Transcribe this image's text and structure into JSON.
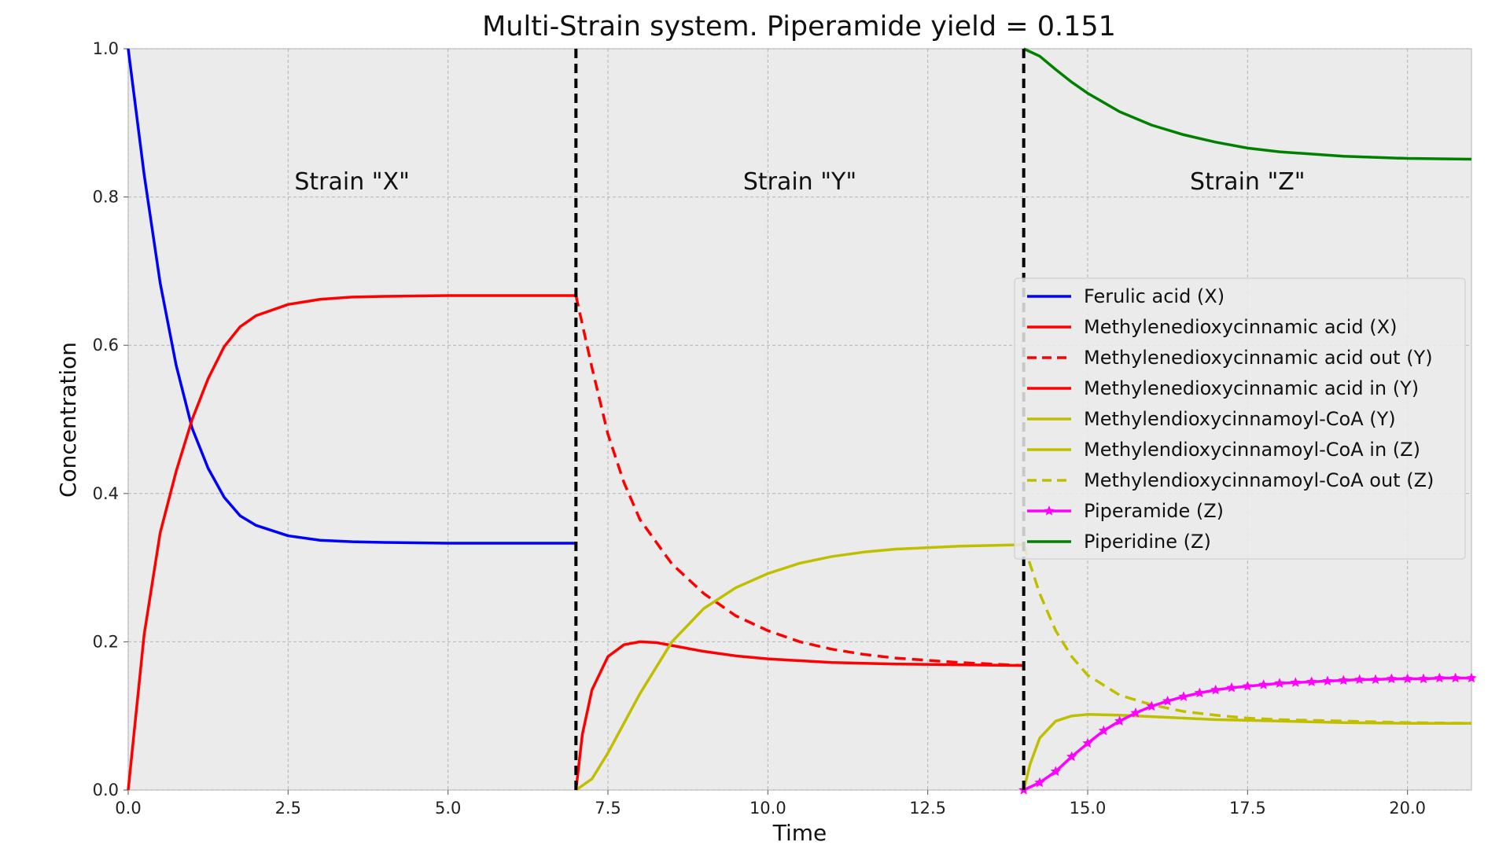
{
  "chart_data": {
    "type": "line",
    "title": "Multi-Strain system. Piperamide yield = 0.151",
    "xlabel": "Time",
    "ylabel": "Concentration",
    "xlim": [
      0,
      21
    ],
    "ylim": [
      0,
      1
    ],
    "xticks": [
      "0.0",
      "2.5",
      "5.0",
      "7.5",
      "10.0",
      "12.5",
      "15.0",
      "17.5",
      "20.0"
    ],
    "yticks": [
      "0.0",
      "0.2",
      "0.4",
      "0.6",
      "0.8",
      "1.0"
    ],
    "xtick_values": [
      0,
      2.5,
      5,
      7.5,
      10,
      12.5,
      15,
      17.5,
      20
    ],
    "ytick_values": [
      0,
      0.2,
      0.4,
      0.6,
      0.8,
      1.0
    ],
    "grid": true,
    "legend_position": "center-right",
    "dividers": [
      7,
      14
    ],
    "regions": [
      {
        "label": "Strain \"X\"",
        "x": 3.5,
        "y": 0.81
      },
      {
        "label": "Strain \"Y\"",
        "x": 10.5,
        "y": 0.81
      },
      {
        "label": "Strain \"Z\"",
        "x": 17.5,
        "y": 0.81
      }
    ],
    "series": [
      {
        "name": "Ferulic acid (X)",
        "color": "#0000ff",
        "style": "solid",
        "x": [
          0,
          0.25,
          0.5,
          0.75,
          1,
          1.25,
          1.5,
          1.75,
          2,
          2.5,
          3,
          3.5,
          4,
          5,
          6,
          7
        ],
        "y": [
          1.0,
          0.83,
          0.684,
          0.573,
          0.488,
          0.434,
          0.395,
          0.37,
          0.357,
          0.343,
          0.337,
          0.335,
          0.334,
          0.333,
          0.333,
          0.333
        ]
      },
      {
        "name": "Methylenedioxycinnamic acid (X)",
        "color": "#ff0000",
        "style": "solid",
        "x": [
          0,
          0.25,
          0.5,
          0.75,
          1,
          1.25,
          1.5,
          1.75,
          2,
          2.5,
          3,
          3.5,
          4,
          5,
          6,
          7
        ],
        "y": [
          0.0,
          0.21,
          0.347,
          0.43,
          0.5,
          0.555,
          0.598,
          0.625,
          0.64,
          0.655,
          0.662,
          0.665,
          0.666,
          0.667,
          0.667,
          0.667
        ]
      },
      {
        "name": "Methylenedioxycinnamic acid out (Y)",
        "color": "#ff0000",
        "style": "dashed",
        "x": [
          7,
          7.25,
          7.5,
          7.75,
          8,
          8.5,
          9,
          9.5,
          10,
          10.5,
          11,
          11.5,
          12,
          13,
          14
        ],
        "y": [
          0.667,
          0.57,
          0.48,
          0.415,
          0.365,
          0.305,
          0.265,
          0.235,
          0.215,
          0.2,
          0.19,
          0.183,
          0.178,
          0.172,
          0.168
        ]
      },
      {
        "name": "Methylenedioxycinnamic acid in (Y)",
        "color": "#ff0000",
        "style": "solid",
        "x": [
          7,
          7.1,
          7.25,
          7.5,
          7.75,
          8,
          8.25,
          8.5,
          9,
          9.5,
          10,
          11,
          12,
          13,
          14
        ],
        "y": [
          0.0,
          0.075,
          0.135,
          0.18,
          0.196,
          0.2,
          0.199,
          0.195,
          0.187,
          0.181,
          0.177,
          0.172,
          0.17,
          0.169,
          0.168
        ]
      },
      {
        "name": "Methylendioxycinnamoyl-CoA (Y)",
        "color": "#bfbf00",
        "style": "solid",
        "x": [
          7,
          7.25,
          7.5,
          7.75,
          8,
          8.5,
          9,
          9.5,
          10,
          10.5,
          11,
          11.5,
          12,
          13,
          14
        ],
        "y": [
          0.0,
          0.015,
          0.05,
          0.09,
          0.13,
          0.2,
          0.245,
          0.273,
          0.292,
          0.306,
          0.315,
          0.321,
          0.325,
          0.329,
          0.331
        ]
      },
      {
        "name": "Methylendioxycinnamoyl-CoA in (Z)",
        "color": "#bfbf00",
        "style": "solid",
        "x": [
          14,
          14.1,
          14.25,
          14.5,
          14.75,
          15,
          15.5,
          16,
          16.5,
          17,
          18,
          19,
          20,
          21
        ],
        "y": [
          0.0,
          0.035,
          0.07,
          0.093,
          0.1,
          0.102,
          0.101,
          0.099,
          0.097,
          0.095,
          0.093,
          0.091,
          0.09,
          0.09
        ]
      },
      {
        "name": "Methylendioxycinnamoyl-CoA out (Z)",
        "color": "#bfbf00",
        "style": "dashed",
        "x": [
          14,
          14.25,
          14.5,
          14.75,
          15,
          15.5,
          16,
          16.5,
          17,
          17.5,
          18,
          19,
          20,
          21
        ],
        "y": [
          0.331,
          0.265,
          0.215,
          0.18,
          0.155,
          0.128,
          0.115,
          0.106,
          0.101,
          0.097,
          0.095,
          0.093,
          0.091,
          0.09
        ]
      },
      {
        "name": "Piperamide (Z)",
        "color": "#ff00ff",
        "style": "solid-star",
        "x": [
          14,
          14.25,
          14.5,
          14.75,
          15,
          15.25,
          15.5,
          15.75,
          16,
          16.25,
          16.5,
          16.75,
          17,
          17.25,
          17.5,
          17.75,
          18,
          18.25,
          18.5,
          18.75,
          19,
          19.25,
          19.5,
          19.75,
          20,
          20.25,
          20.5,
          20.75,
          21
        ],
        "y": [
          0.0,
          0.01,
          0.025,
          0.045,
          0.063,
          0.08,
          0.093,
          0.104,
          0.113,
          0.12,
          0.126,
          0.131,
          0.135,
          0.138,
          0.14,
          0.142,
          0.144,
          0.145,
          0.146,
          0.147,
          0.148,
          0.149,
          0.149,
          0.15,
          0.15,
          0.15,
          0.151,
          0.151,
          0.151
        ]
      },
      {
        "name": "Piperidine (Z)",
        "color": "#008000",
        "style": "solid",
        "x": [
          14,
          14.25,
          14.5,
          14.75,
          15,
          15.5,
          16,
          16.5,
          17,
          17.5,
          18,
          19,
          20,
          21
        ],
        "y": [
          1.0,
          0.99,
          0.972,
          0.955,
          0.94,
          0.915,
          0.897,
          0.884,
          0.874,
          0.866,
          0.861,
          0.855,
          0.852,
          0.851
        ]
      }
    ]
  }
}
